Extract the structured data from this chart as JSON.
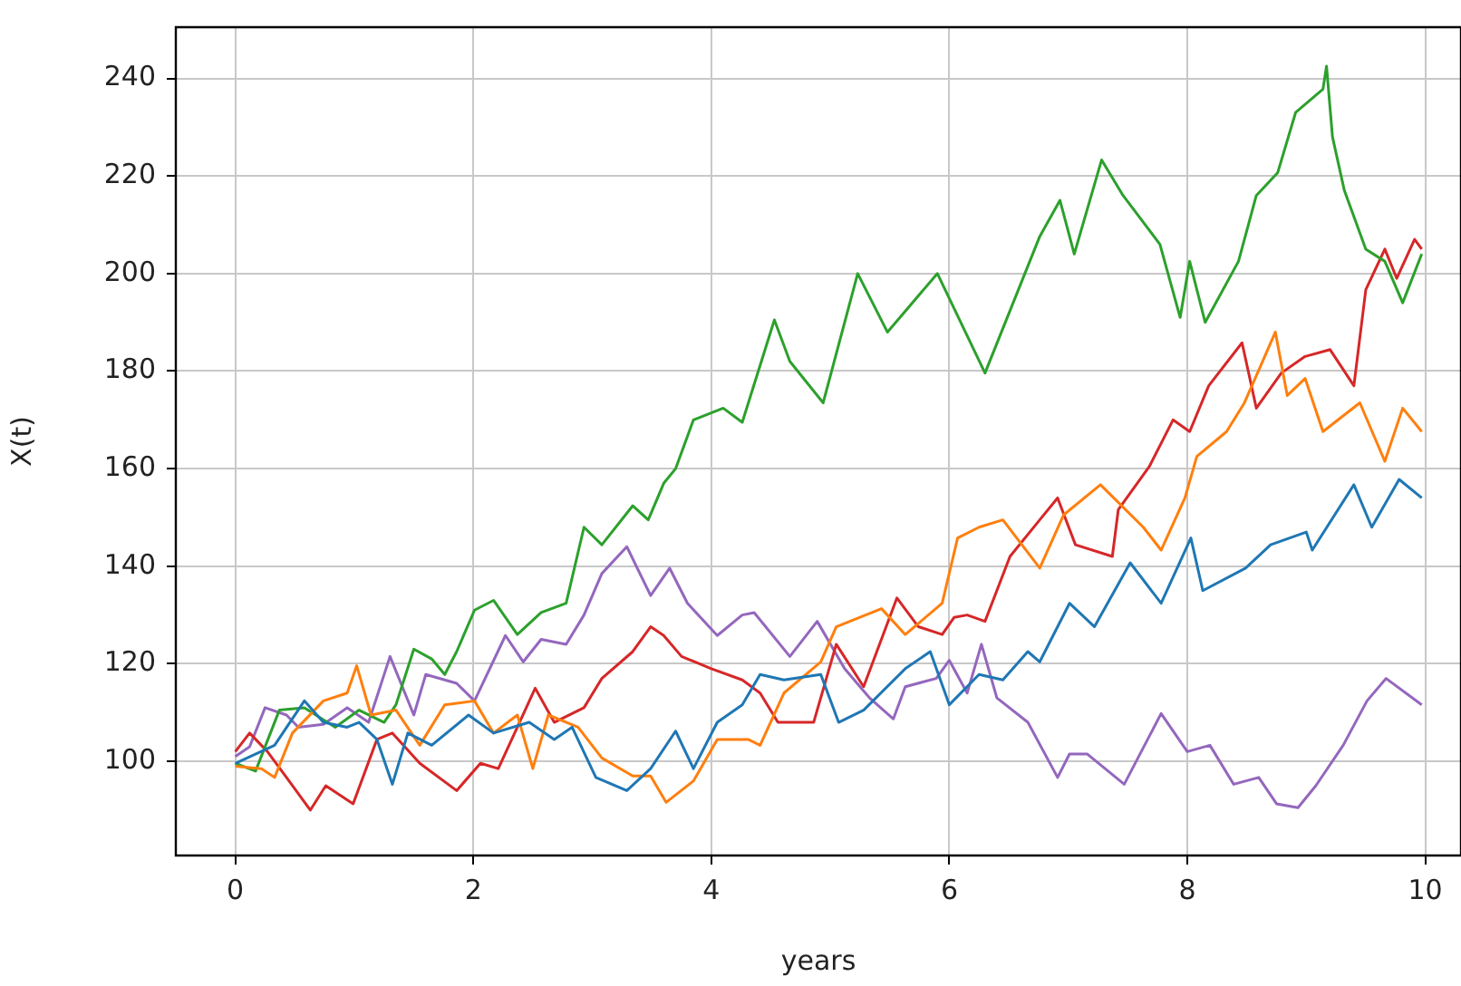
{
  "chart_data": {
    "type": "line",
    "xlabel": "years",
    "ylabel": "X(t)",
    "xlim": [
      -0.5,
      10.3
    ],
    "ylim": [
      80.7,
      250.5
    ],
    "xticks": [
      0,
      2,
      4,
      6,
      8,
      10
    ],
    "yticks": [
      100,
      120,
      140,
      160,
      180,
      200,
      220,
      240
    ],
    "grid": true,
    "legend": false,
    "marker": "none",
    "line_style": "solid",
    "series": [
      {
        "color": "#1f77b4",
        "x": [
          0,
          0.33,
          0.58,
          0.74,
          0.94,
          1.04,
          1.19,
          1.32,
          1.45,
          1.65,
          1.96,
          2.17,
          2.47,
          2.68,
          2.83,
          3.03,
          3.29,
          3.49,
          3.7,
          3.85,
          4.05,
          4.26,
          4.41,
          4.61,
          4.92,
          5.07,
          5.28,
          5.63,
          5.84,
          6.0,
          6.25,
          6.45,
          6.66,
          6.76,
          7.01,
          7.22,
          7.52,
          7.78,
          8.03,
          8.13,
          8.49,
          8.7,
          9.0,
          9.05,
          9.4,
          9.55,
          9.78,
          9.97
        ],
        "values": [
          99.6,
          103.3,
          112.4,
          108,
          107,
          108,
          104.5,
          95.3,
          105.8,
          103.3,
          109.5,
          105.8,
          108,
          104.5,
          107,
          96.7,
          94,
          98.5,
          106.2,
          98.5,
          108,
          111.6,
          117.8,
          116.7,
          117.8,
          108,
          110.5,
          119,
          122.5,
          111.6,
          117.8,
          116.7,
          122.5,
          120.4,
          132.4,
          127.6,
          140.7,
          132.4,
          145.8,
          135,
          139.6,
          144.4,
          147,
          143.3,
          156.7,
          148,
          157.8,
          154
        ]
      },
      {
        "color": "#ff7f0e",
        "x": [
          0,
          0.22,
          0.33,
          0.48,
          0.74,
          0.94,
          1.02,
          1.14,
          1.35,
          1.55,
          1.76,
          2.01,
          2.17,
          2.37,
          2.5,
          2.63,
          2.88,
          3.08,
          3.34,
          3.49,
          3.62,
          3.85,
          4.05,
          4.31,
          4.41,
          4.61,
          4.92,
          5.05,
          5.43,
          5.63,
          5.94,
          6.07,
          6.25,
          6.45,
          6.76,
          6.96,
          7.27,
          7.63,
          7.78,
          7.98,
          8.08,
          8.33,
          8.48,
          8.61,
          8.74,
          8.84,
          8.99,
          9.14,
          9.45,
          9.66,
          9.81,
          9.97
        ],
        "values": [
          99,
          98.5,
          96.7,
          105.8,
          112.4,
          114,
          119.6,
          109.5,
          110.5,
          103.3,
          111.6,
          112.4,
          105.8,
          109.5,
          98.5,
          109.5,
          107,
          100.7,
          97,
          97,
          91.6,
          96,
          104.5,
          104.5,
          103.3,
          114,
          120.4,
          127.6,
          131.3,
          126,
          132.4,
          145.8,
          148,
          149.5,
          139.6,
          150.5,
          156.7,
          148,
          143.3,
          154,
          162.5,
          167.6,
          173.5,
          180.7,
          188,
          175,
          178.5,
          167.6,
          173.5,
          161.5,
          172.4,
          167.6
        ]
      },
      {
        "color": "#2ca02c",
        "x": [
          0,
          0.17,
          0.37,
          0.58,
          0.84,
          1.04,
          1.25,
          1.35,
          1.5,
          1.65,
          1.76,
          1.86,
          2.01,
          2.17,
          2.37,
          2.57,
          2.78,
          2.93,
          3.08,
          3.34,
          3.47,
          3.6,
          3.7,
          3.85,
          4.1,
          4.26,
          4.53,
          4.66,
          4.94,
          5.23,
          5.48,
          5.9,
          6.3,
          6.76,
          6.93,
          7.05,
          7.28,
          7.46,
          7.77,
          7.94,
          8.02,
          8.15,
          8.43,
          8.58,
          8.76,
          8.91,
          9.14,
          9.17,
          9.22,
          9.32,
          9.5,
          9.66,
          9.81,
          9.97
        ],
        "values": [
          99.6,
          98,
          110.5,
          111,
          107,
          110.5,
          108,
          111.6,
          123,
          121,
          117.8,
          122.5,
          131,
          133,
          126,
          130.5,
          132.4,
          148,
          144.4,
          152.4,
          149.5,
          157,
          160,
          170,
          172.4,
          169.5,
          190.5,
          182,
          173.5,
          200,
          188,
          200,
          179.6,
          207.6,
          215,
          204,
          223.3,
          216,
          206,
          191,
          202.5,
          190,
          202.5,
          216,
          220.7,
          233,
          237.8,
          242.5,
          228,
          217,
          205,
          202.5,
          194,
          204
        ]
      },
      {
        "color": "#d62728",
        "x": [
          0,
          0.12,
          0.27,
          0.43,
          0.63,
          0.76,
          0.99,
          1.19,
          1.32,
          1.55,
          1.86,
          2.06,
          2.21,
          2.37,
          2.52,
          2.68,
          2.93,
          3.08,
          3.34,
          3.49,
          3.6,
          3.75,
          4.0,
          4.26,
          4.41,
          4.56,
          4.86,
          5.05,
          5.28,
          5.56,
          5.74,
          5.94,
          6.04,
          6.15,
          6.3,
          6.51,
          6.76,
          6.91,
          7.06,
          7.37,
          7.42,
          7.68,
          7.88,
          8.02,
          8.18,
          8.46,
          8.58,
          8.79,
          8.99,
          9.2,
          9.4,
          9.5,
          9.66,
          9.76,
          9.91,
          9.97
        ],
        "values": [
          102,
          105.8,
          102,
          96.7,
          90,
          95,
          91.3,
          104.5,
          105.8,
          99.6,
          94,
          99.6,
          98.5,
          107,
          115,
          108,
          111,
          117,
          122.5,
          127.6,
          125.8,
          121.5,
          119,
          116.7,
          114,
          108,
          108,
          124,
          115.3,
          133.5,
          127.6,
          126,
          129.5,
          130,
          128.7,
          142,
          149.5,
          154,
          144.4,
          142,
          151.6,
          160.4,
          170,
          167.6,
          177,
          185.8,
          172.4,
          179.6,
          183,
          184.4,
          177,
          196.7,
          205,
          199,
          207,
          205
        ]
      },
      {
        "color": "#9467bd",
        "x": [
          0,
          0.12,
          0.25,
          0.43,
          0.53,
          0.74,
          0.94,
          1.12,
          1.3,
          1.5,
          1.6,
          1.86,
          2.01,
          2.27,
          2.42,
          2.57,
          2.78,
          2.93,
          3.08,
          3.29,
          3.49,
          3.65,
          3.8,
          4.05,
          4.26,
          4.36,
          4.66,
          4.89,
          5.12,
          5.33,
          5.53,
          5.63,
          5.89,
          6.0,
          6.15,
          6.27,
          6.4,
          6.66,
          6.91,
          7.01,
          7.16,
          7.47,
          7.78,
          8.0,
          8.19,
          8.39,
          8.6,
          8.75,
          8.93,
          9.08,
          9.31,
          9.51,
          9.67,
          9.97
        ],
        "values": [
          101,
          103,
          111,
          109.5,
          107,
          107.6,
          111,
          108,
          121.5,
          109.5,
          117.8,
          116,
          112.4,
          125.8,
          120.4,
          125,
          124,
          130,
          138.5,
          144,
          134,
          139.6,
          132.4,
          125.8,
          130,
          130.5,
          121.5,
          128.7,
          119,
          113,
          108.7,
          115.3,
          117,
          120.7,
          114,
          124,
          113,
          108,
          96.7,
          101.5,
          101.5,
          95.3,
          109.8,
          102,
          103.3,
          95.3,
          96.7,
          91.3,
          90.5,
          95,
          103.3,
          112.4,
          117,
          111.6
        ]
      }
    ]
  }
}
